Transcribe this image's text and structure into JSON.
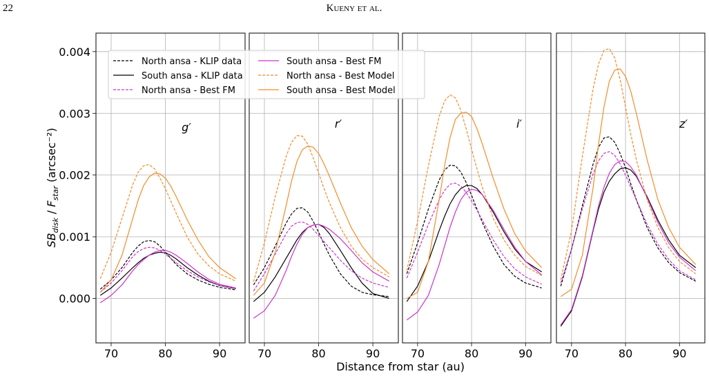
{
  "page_number": "22",
  "running_head": "Kueny et al.",
  "chart_data": [
    {
      "type": "line",
      "label": "g′",
      "ylabel": [
        "SB",
        "disk",
        " / ",
        "F",
        "star",
        " (arcsec⁻²)"
      ],
      "xlabel": "Distance from star (au)",
      "xlim": [
        67.2,
        94.7
      ],
      "xticks": [
        70,
        80,
        90
      ],
      "ylim": [
        -0.00072,
        0.0043
      ],
      "yticks": [
        {
          "value": 0,
          "label": "0.000"
        },
        {
          "value": 0.001,
          "label": "0.001"
        },
        {
          "value": 0.002,
          "label": "0.002"
        },
        {
          "value": 0.003,
          "label": "0.003"
        },
        {
          "value": 0.004,
          "label": "0.004"
        }
      ],
      "grid": true,
      "legend": "upper left",
      "x": [
        68,
        70,
        72,
        74,
        75,
        76,
        77,
        78,
        79,
        80,
        81,
        82,
        84,
        86,
        88,
        90,
        93
      ],
      "series": [
        {
          "name": "North ansa - KLIP data",
          "color": "#000000",
          "dashed": true,
          "values": [
            0.00015,
            0.0003,
            0.0005,
            0.00075,
            0.00085,
            0.00092,
            0.00094,
            0.00092,
            0.00085,
            0.00075,
            0.00065,
            0.00055,
            0.0004,
            0.0003,
            0.00023,
            0.00018,
            0.00014
          ]
        },
        {
          "name": "South ansa - KLIP data",
          "color": "#000000",
          "dashed": false,
          "values": [
            5e-05,
            0.00017,
            0.00033,
            0.0005,
            0.00058,
            0.00065,
            0.0007,
            0.00073,
            0.00075,
            0.00074,
            0.0007,
            0.00064,
            0.0005,
            0.00038,
            0.00028,
            0.00021,
            0.00016
          ]
        },
        {
          "name": "North ansa - Best FM",
          "color": "#cc33cc",
          "dashed": true,
          "values": [
            0.0001,
            0.00025,
            0.00045,
            0.00068,
            0.00076,
            0.00081,
            0.00083,
            0.00082,
            0.00078,
            0.00072,
            0.00065,
            0.00058,
            0.00045,
            0.00035,
            0.00027,
            0.00021,
            0.00016
          ]
        },
        {
          "name": "South ansa - Best FM",
          "color": "#cc33cc",
          "dashed": false,
          "values": [
            -7e-05,
            5e-05,
            0.00022,
            0.00045,
            0.00055,
            0.00063,
            0.0007,
            0.00075,
            0.00078,
            0.00078,
            0.00075,
            0.0007,
            0.00057,
            0.00043,
            0.00031,
            0.00023,
            0.00017
          ]
        },
        {
          "name": "North ansa - Best Model",
          "color": "#f28c28",
          "dashed": true,
          "values": [
            0.00032,
            0.00075,
            0.0013,
            0.00185,
            0.00205,
            0.00215,
            0.00217,
            0.0021,
            0.00195,
            0.00178,
            0.00158,
            0.00138,
            0.001,
            0.00072,
            0.00053,
            0.0004,
            0.00028
          ]
        },
        {
          "name": "South ansa - Best Model",
          "color": "#f28c28",
          "dashed": false,
          "values": [
            0.0001,
            0.0003,
            0.0007,
            0.0013,
            0.0016,
            0.00183,
            0.00197,
            0.00203,
            0.00202,
            0.00195,
            0.00182,
            0.00165,
            0.00128,
            0.00095,
            0.00068,
            0.0005,
            0.00032
          ]
        }
      ]
    },
    {
      "type": "line",
      "label": "r′",
      "xlim": [
        67.2,
        94.7
      ],
      "xticks": [
        70,
        80,
        90
      ],
      "grid": true,
      "x": [
        68,
        70,
        72,
        74,
        75,
        76,
        77,
        78,
        79,
        80,
        81,
        82,
        84,
        86,
        88,
        90,
        93
      ],
      "series": [
        {
          "color": "#000000",
          "dashed": true,
          "values": [
            0.00022,
            0.0005,
            0.00085,
            0.00122,
            0.00137,
            0.00146,
            0.00147,
            0.0014,
            0.00125,
            0.00107,
            0.00088,
            0.0007,
            0.0004,
            0.0002,
            0.0001,
            6e-05,
            3e-05
          ]
        },
        {
          "color": "#000000",
          "dashed": false,
          "values": [
            -5e-05,
            0.0001,
            0.00035,
            0.00065,
            0.0008,
            0.00095,
            0.00107,
            0.00115,
            0.00119,
            0.0012,
            0.00115,
            0.00105,
            0.00078,
            0.0005,
            0.00025,
            8e-05,
            0
          ]
        },
        {
          "color": "#cc33cc",
          "dashed": true,
          "values": [
            0.00012,
            0.0004,
            0.00072,
            0.00105,
            0.00117,
            0.00123,
            0.00124,
            0.0012,
            0.00112,
            0.00102,
            0.00092,
            0.00082,
            0.00062,
            0.00045,
            0.00033,
            0.00025,
            0.00018
          ]
        },
        {
          "color": "#cc33cc",
          "dashed": false,
          "values": [
            -0.00032,
            -0.0002,
            5e-05,
            0.00045,
            0.00068,
            0.00088,
            0.00104,
            0.00115,
            0.00119,
            0.0012,
            0.00117,
            0.00112,
            0.00097,
            0.00078,
            0.00058,
            0.00043,
            0.00028
          ]
        },
        {
          "color": "#f28c28",
          "dashed": true,
          "values": [
            0.00027,
            0.0009,
            0.00165,
            0.0023,
            0.00253,
            0.00264,
            0.00263,
            0.0025,
            0.00228,
            0.00203,
            0.00178,
            0.00155,
            0.00115,
            0.00085,
            0.00064,
            0.0005,
            0.00035
          ]
        },
        {
          "color": "#f28c28",
          "dashed": false,
          "values": [
            5e-05,
            0.00025,
            0.00075,
            0.0015,
            0.0019,
            0.00222,
            0.00241,
            0.00247,
            0.00245,
            0.00235,
            0.00218,
            0.00198,
            0.00155,
            0.00115,
            0.00085,
            0.00063,
            0.0004
          ]
        }
      ]
    },
    {
      "type": "line",
      "label": "i′",
      "xlim": [
        67.2,
        94.7
      ],
      "xticks": [
        70,
        80,
        90
      ],
      "grid": true,
      "x": [
        68,
        70,
        72,
        74,
        75,
        76,
        77,
        78,
        79,
        80,
        81,
        82,
        84,
        86,
        88,
        90,
        93
      ],
      "series": [
        {
          "color": "#000000",
          "dashed": true,
          "values": [
            0.0004,
            0.0009,
            0.00145,
            0.00192,
            0.00208,
            0.00216,
            0.00215,
            0.00205,
            0.00188,
            0.00167,
            0.00145,
            0.00123,
            0.00085,
            0.00055,
            0.00036,
            0.00025,
            0.00017
          ]
        },
        {
          "color": "#000000",
          "dashed": false,
          "values": [
            -5e-05,
            0.0002,
            0.0006,
            0.0011,
            0.00133,
            0.00153,
            0.00168,
            0.00178,
            0.00183,
            0.00183,
            0.00178,
            0.00168,
            0.0014,
            0.00108,
            0.0008,
            0.0006,
            0.00043
          ]
        },
        {
          "color": "#cc33cc",
          "dashed": true,
          "values": [
            0.00033,
            0.00075,
            0.0012,
            0.0016,
            0.00175,
            0.00185,
            0.00187,
            0.00182,
            0.00172,
            0.00158,
            0.00143,
            0.00127,
            0.00095,
            0.00068,
            0.00048,
            0.00035,
            0.00023
          ]
        },
        {
          "color": "#cc33cc",
          "dashed": false,
          "values": [
            -0.00035,
            -0.00022,
            5e-05,
            0.00055,
            0.00085,
            0.00115,
            0.0014,
            0.0016,
            0.00172,
            0.00177,
            0.00175,
            0.00168,
            0.00143,
            0.00112,
            0.00083,
            0.0006,
            0.00038
          ]
        },
        {
          "color": "#f28c28",
          "dashed": true,
          "values": [
            0.00045,
            0.00125,
            0.00215,
            0.00295,
            0.0032,
            0.0033,
            0.00325,
            0.00305,
            0.00275,
            0.00242,
            0.0021,
            0.0018,
            0.0013,
            0.00095,
            0.0007,
            0.00052,
            0.00037
          ]
        },
        {
          "color": "#f28c28",
          "dashed": false,
          "values": [
            0,
            0.0001,
            0.0006,
            0.0016,
            0.00215,
            0.0026,
            0.0029,
            0.003,
            0.00302,
            0.00295,
            0.00275,
            0.0025,
            0.00195,
            0.00145,
            0.00105,
            0.00077,
            0.0005
          ]
        }
      ]
    },
    {
      "type": "line",
      "label": "z′",
      "xlim": [
        67.2,
        94.7
      ],
      "xticks": [
        70,
        80,
        90
      ],
      "grid": true,
      "x": [
        68,
        70,
        72,
        74,
        75,
        76,
        77,
        78,
        79,
        80,
        81,
        82,
        84,
        86,
        88,
        90,
        93
      ],
      "series": [
        {
          "color": "#000000",
          "dashed": true,
          "values": [
            0.0002,
            0.0008,
            0.0015,
            0.00218,
            0.00245,
            0.0026,
            0.00262,
            0.00253,
            0.00235,
            0.00212,
            0.00185,
            0.0016,
            0.00115,
            0.00082,
            0.00058,
            0.00042,
            0.00028
          ]
        },
        {
          "color": "#000000",
          "dashed": false,
          "values": [
            -0.00045,
            -0.0002,
            0.00035,
            0.0011,
            0.00145,
            0.00172,
            0.0019,
            0.00202,
            0.0021,
            0.00212,
            0.00208,
            0.00198,
            0.00165,
            0.00127,
            0.00095,
            0.0007,
            0.0005
          ]
        },
        {
          "color": "#cc33cc",
          "dashed": true,
          "values": [
            0.00025,
            0.0008,
            0.00145,
            0.00202,
            0.00223,
            0.00235,
            0.00238,
            0.00232,
            0.00218,
            0.002,
            0.0018,
            0.0016,
            0.0012,
            0.00088,
            0.00063,
            0.00045,
            0.0003
          ]
        },
        {
          "color": "#cc33cc",
          "dashed": false,
          "values": [
            -0.00043,
            -0.00018,
            0.00037,
            0.00112,
            0.0015,
            0.0018,
            0.00203,
            0.00217,
            0.00223,
            0.00222,
            0.00213,
            0.002,
            0.00163,
            0.00123,
            0.0009,
            0.00067,
            0.00045
          ]
        },
        {
          "color": "#f28c28",
          "dashed": true,
          "values": [
            0.0003,
            0.0011,
            0.0023,
            0.0034,
            0.0038,
            0.00402,
            0.00405,
            0.0039,
            0.00355,
            0.0031,
            0.00265,
            0.00225,
            0.0016,
            0.00115,
            0.00082,
            0.0006,
            0.0004
          ]
        },
        {
          "color": "#f28c28",
          "dashed": false,
          "values": [
            3e-05,
            0.00015,
            0.0007,
            0.0018,
            0.0025,
            0.0031,
            0.00352,
            0.0037,
            0.00372,
            0.0036,
            0.00335,
            0.003,
            0.00225,
            0.0016,
            0.00115,
            0.00083,
            0.00055
          ]
        }
      ]
    }
  ]
}
